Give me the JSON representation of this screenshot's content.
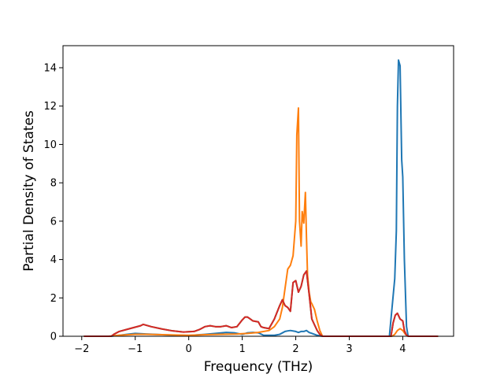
{
  "chart_data": {
    "type": "line",
    "title": "",
    "xlabel": "Frequency (THz)",
    "ylabel": "Partial Density of States",
    "xlim": [
      -2.35,
      4.95
    ],
    "ylim": [
      0,
      15.15
    ],
    "xticks": [
      -2,
      -1,
      0,
      1,
      2,
      3,
      4
    ],
    "yticks": [
      0,
      2,
      4,
      6,
      8,
      10,
      12,
      14
    ],
    "grid": false,
    "legend": "none",
    "series": [
      {
        "color": "#1f77b4",
        "x": [
          -1.95,
          -1.45,
          -1.3,
          -1.0,
          -0.8,
          -0.5,
          -0.2,
          0.0,
          0.3,
          0.5,
          0.7,
          0.85,
          1.0,
          1.1,
          1.2,
          1.3,
          1.4,
          1.5,
          1.6,
          1.7,
          1.8,
          1.85,
          1.9,
          2.0,
          2.05,
          2.1,
          2.15,
          2.2,
          2.25,
          2.3,
          2.35,
          2.4,
          2.45,
          2.5,
          3.0,
          3.5,
          3.75,
          3.8,
          3.85,
          3.88,
          3.9,
          3.92,
          3.95,
          3.98,
          4.0,
          4.03,
          4.07,
          4.1,
          4.5,
          4.65
        ],
        "values": [
          0,
          0,
          0.05,
          0.15,
          0.12,
          0.08,
          0.05,
          0.04,
          0.1,
          0.15,
          0.2,
          0.18,
          0.1,
          0.18,
          0.2,
          0.18,
          0.05,
          0.05,
          0.05,
          0.1,
          0.25,
          0.28,
          0.3,
          0.25,
          0.2,
          0.25,
          0.25,
          0.3,
          0.2,
          0.15,
          0.1,
          0.05,
          0.02,
          0,
          0,
          0,
          0,
          1.5,
          3.0,
          5.5,
          12.0,
          14.4,
          14.1,
          9.2,
          8.3,
          4.0,
          0.5,
          0,
          0,
          0
        ]
      },
      {
        "color": "#ff7f0e",
        "x": [
          -1.95,
          -1.5,
          -1.3,
          -1.0,
          -0.8,
          -0.5,
          -0.2,
          0.0,
          0.3,
          0.6,
          0.9,
          1.1,
          1.3,
          1.5,
          1.6,
          1.7,
          1.75,
          1.8,
          1.85,
          1.9,
          1.95,
          2.0,
          2.02,
          2.05,
          2.07,
          2.1,
          2.12,
          2.15,
          2.18,
          2.2,
          2.22,
          2.25,
          2.28,
          2.3,
          2.35,
          2.4,
          2.45,
          2.5,
          3.0,
          3.5,
          3.8,
          3.85,
          3.9,
          3.95,
          4.0,
          4.05,
          4.1,
          4.5,
          4.65
        ],
        "values": [
          0,
          0,
          0.05,
          0.1,
          0.1,
          0.08,
          0.06,
          0.05,
          0.08,
          0.1,
          0.12,
          0.15,
          0.2,
          0.3,
          0.5,
          0.9,
          1.5,
          2.5,
          3.5,
          3.7,
          4.2,
          6.0,
          10.5,
          11.9,
          6.0,
          4.7,
          6.5,
          5.9,
          7.5,
          5.2,
          3.2,
          2.3,
          1.8,
          1.7,
          1.4,
          0.8,
          0.3,
          0,
          0,
          0,
          0,
          0.1,
          0.3,
          0.4,
          0.3,
          0.1,
          0,
          0,
          0
        ]
      },
      {
        "color": "#2ca02c",
        "x": [
          -1.95,
          -1.45,
          -1.4,
          -1.3,
          -1.1,
          -0.9,
          -0.85,
          -0.7,
          -0.5,
          -0.3,
          -0.1,
          0.1,
          0.2,
          0.3,
          0.4,
          0.5,
          0.6,
          0.7,
          0.8,
          0.9,
          1.0,
          1.05,
          1.1,
          1.15,
          1.2,
          1.3,
          1.35,
          1.4,
          1.5,
          1.6,
          1.7,
          1.75,
          1.8,
          1.85,
          1.9,
          1.95,
          2.0,
          2.05,
          2.1,
          2.15,
          2.2,
          2.25,
          2.3,
          2.35,
          2.4,
          2.45,
          2.5,
          3.0,
          3.5,
          3.78,
          3.82,
          3.86,
          3.9,
          3.95,
          4.0,
          4.03,
          4.06,
          4.1,
          4.5,
          4.65
        ],
        "values": [
          0,
          0,
          0.1,
          0.25,
          0.4,
          0.55,
          0.62,
          0.5,
          0.38,
          0.28,
          0.22,
          0.25,
          0.35,
          0.5,
          0.55,
          0.5,
          0.5,
          0.55,
          0.45,
          0.5,
          0.85,
          1.0,
          1.0,
          0.9,
          0.8,
          0.75,
          0.5,
          0.45,
          0.4,
          0.9,
          1.6,
          1.9,
          1.6,
          1.5,
          1.3,
          2.8,
          2.9,
          2.3,
          2.6,
          3.2,
          3.4,
          2.2,
          0.9,
          0.6,
          0.3,
          0.1,
          0,
          0,
          0,
          0,
          0.7,
          1.1,
          1.2,
          0.9,
          0.8,
          0.3,
          0.1,
          0,
          0,
          0
        ]
      },
      {
        "color": "#d62728",
        "x": [
          -1.95,
          -1.45,
          -1.4,
          -1.3,
          -1.1,
          -0.9,
          -0.85,
          -0.7,
          -0.5,
          -0.3,
          -0.1,
          0.1,
          0.2,
          0.3,
          0.4,
          0.5,
          0.6,
          0.7,
          0.8,
          0.9,
          1.0,
          1.05,
          1.1,
          1.15,
          1.2,
          1.3,
          1.35,
          1.4,
          1.5,
          1.6,
          1.7,
          1.75,
          1.8,
          1.85,
          1.9,
          1.95,
          2.0,
          2.05,
          2.1,
          2.15,
          2.2,
          2.25,
          2.3,
          2.35,
          2.4,
          2.45,
          2.5,
          3.0,
          3.5,
          3.78,
          3.82,
          3.86,
          3.9,
          3.95,
          4.0,
          4.03,
          4.06,
          4.1,
          4.5,
          4.65
        ],
        "values": [
          0,
          0,
          0.1,
          0.25,
          0.4,
          0.55,
          0.62,
          0.5,
          0.38,
          0.28,
          0.22,
          0.25,
          0.35,
          0.5,
          0.55,
          0.5,
          0.5,
          0.55,
          0.45,
          0.5,
          0.85,
          1.0,
          1.0,
          0.9,
          0.8,
          0.75,
          0.5,
          0.45,
          0.4,
          0.9,
          1.6,
          1.9,
          1.6,
          1.5,
          1.3,
          2.8,
          2.9,
          2.3,
          2.6,
          3.2,
          3.4,
          2.2,
          0.9,
          0.6,
          0.3,
          0.1,
          0,
          0,
          0,
          0,
          0.7,
          1.1,
          1.2,
          0.9,
          0.8,
          0.3,
          0.1,
          0,
          0,
          0
        ]
      }
    ]
  }
}
